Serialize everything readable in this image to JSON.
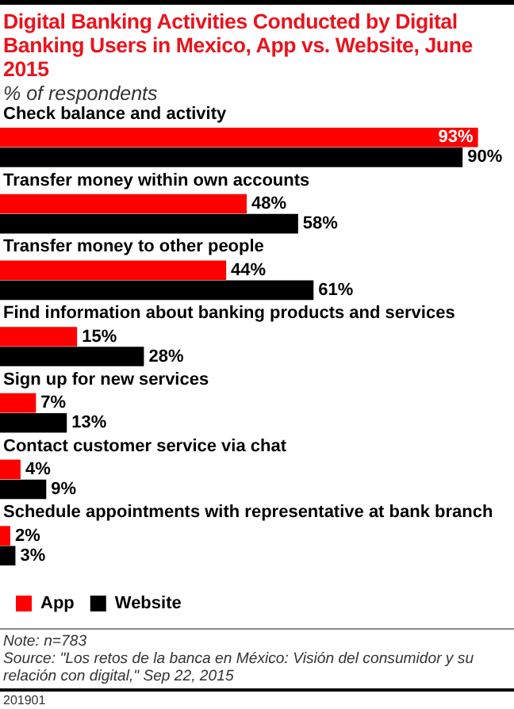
{
  "chart_data": {
    "type": "bar",
    "orientation": "horizontal",
    "title": "Digital Banking Activities Conducted by Digital Banking Users in Mexico, App vs. Website, June 2015",
    "subtitle": "% of respondents",
    "categories": [
      "Check balance and activity",
      "Transfer money within own accounts",
      "Transfer money to other people",
      "Find information about banking products and services",
      "Sign up for new services",
      "Contact customer service via chat",
      "Schedule appointments with representative at bank branch"
    ],
    "series": [
      {
        "name": "App",
        "color": "#ff0000",
        "values": [
          93,
          48,
          44,
          15,
          7,
          4,
          2
        ],
        "value_labels": [
          "93%",
          "48%",
          "44%",
          "15%",
          "7%",
          "4%",
          "2%"
        ]
      },
      {
        "name": "Website",
        "color": "#000000",
        "values": [
          90,
          58,
          61,
          28,
          13,
          9,
          3
        ],
        "value_labels": [
          "90%",
          "58%",
          "61%",
          "28%",
          "13%",
          "9%",
          "3%"
        ]
      }
    ],
    "legend": "bottom",
    "tick_labels": false,
    "annotations": [
      "Note: n=783",
      "Source: \"Los retos de la banca en México: Visión del consumidor y su relación con digital,\" Sep 22, 2015",
      "201901"
    ]
  }
}
